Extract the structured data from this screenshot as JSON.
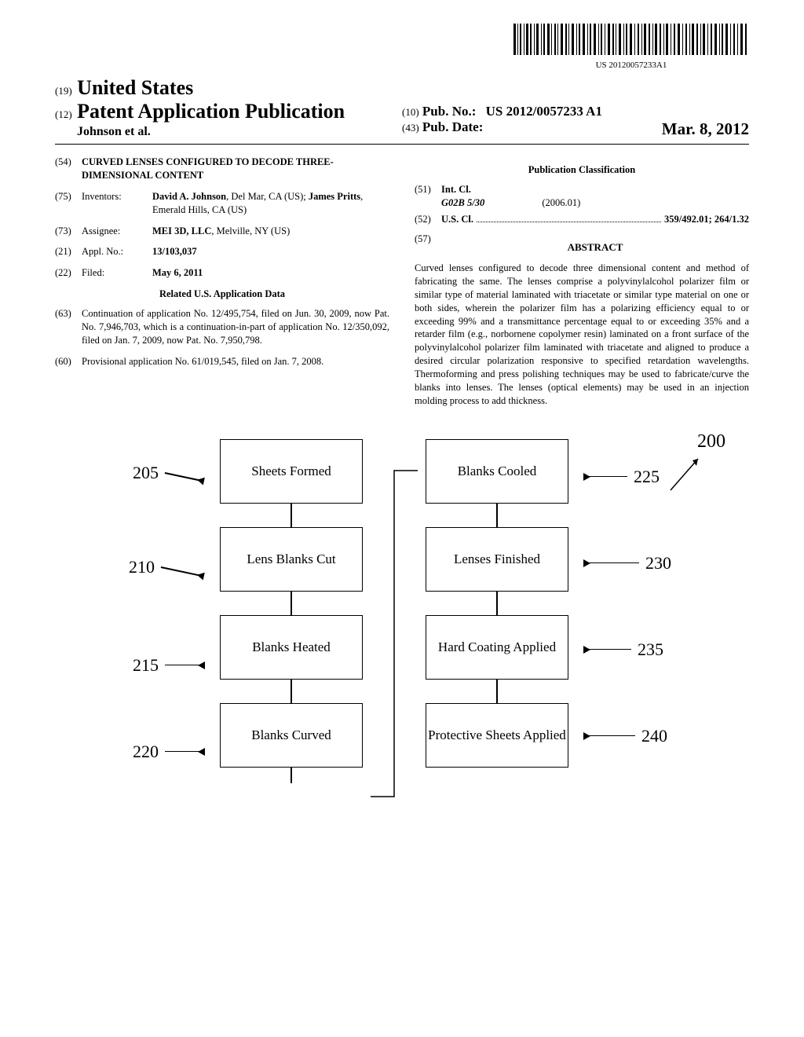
{
  "barcode_text": "US 20120057233A1",
  "header": {
    "tag19": "(19)",
    "country": "United States",
    "tag12": "(12)",
    "pub_type": "Patent Application Publication",
    "authors": "Johnson et al.",
    "tag10": "(10)",
    "pub_no_label": "Pub. No.:",
    "pub_no": "US 2012/0057233 A1",
    "tag43": "(43)",
    "pub_date_label": "Pub. Date:",
    "pub_date": "Mar. 8, 2012"
  },
  "left_col": {
    "f54": {
      "tag": "(54)",
      "title": "CURVED LENSES CONFIGURED TO DECODE THREE-DIMENSIONAL CONTENT"
    },
    "f75": {
      "tag": "(75)",
      "label": "Inventors:",
      "val_html": "<b>David A. Johnson</b>, Del Mar, CA (US); <b>James Pritts</b>, Emerald Hills, CA (US)"
    },
    "f73": {
      "tag": "(73)",
      "label": "Assignee:",
      "val_html": "<b>MEI 3D, LLC</b>, Melville, NY (US)"
    },
    "f21": {
      "tag": "(21)",
      "label": "Appl. No.:",
      "val_html": "<b>13/103,037</b>"
    },
    "f22": {
      "tag": "(22)",
      "label": "Filed:",
      "val_html": "<b>May 6, 2011</b>"
    },
    "related_hdr": "Related U.S. Application Data",
    "f63": {
      "tag": "(63)",
      "text": "Continuation of application No. 12/495,754, filed on Jun. 30, 2009, now Pat. No. 7,946,703, which is a continuation-in-part of application No. 12/350,092, filed on Jan. 7, 2009, now Pat. No. 7,950,798."
    },
    "f60": {
      "tag": "(60)",
      "text": "Provisional application No. 61/019,545, filed on Jan. 7, 2008."
    }
  },
  "right_col": {
    "class_hdr": "Publication Classification",
    "f51": {
      "tag": "(51)",
      "label": "Int. Cl.",
      "code": "G02B 5/30",
      "edition": "(2006.01)"
    },
    "f52": {
      "tag": "(52)",
      "label": "U.S. Cl.",
      "codes": "359/492.01; 264/1.32"
    },
    "f57": {
      "tag": "(57)",
      "label": "ABSTRACT"
    },
    "abstract": "Curved lenses configured to decode three dimensional content and method of fabricating the same. The lenses comprise a polyvinylalcohol polarizer film or similar type of material laminated with triacetate or similar type material on one or both sides, wherein the polarizer film has a polarizing efficiency equal to or exceeding 99% and a transmittance percentage equal to or exceeding 35% and a retarder film (e.g., norbornene copolymer resin) laminated on a front surface of the polyvinylalcohol polarizer film laminated with triacetate and aligned to produce a desired circular polarization responsive to specified retardation wavelengths. Thermoforming and press polishing techniques may be used to fabricate/curve the blanks into lenses. The lenses (optical elements) may be used in an injection molding process to add thickness."
  },
  "figure": {
    "ref200": "200",
    "left_boxes": [
      {
        "n": "205",
        "t": "Sheets Formed"
      },
      {
        "n": "210",
        "t": "Lens Blanks Cut"
      },
      {
        "n": "215",
        "t": "Blanks Heated"
      },
      {
        "n": "220",
        "t": "Blanks Curved"
      }
    ],
    "right_boxes": [
      {
        "n": "225",
        "t": "Blanks Cooled"
      },
      {
        "n": "230",
        "t": "Lenses Finished"
      },
      {
        "n": "235",
        "t": "Hard Coating Applied"
      },
      {
        "n": "240",
        "t": "Protective Sheets Applied"
      }
    ],
    "box_border": "#000000",
    "line_color": "#000000",
    "font_size_labels": 22,
    "font_size_box": 17
  }
}
